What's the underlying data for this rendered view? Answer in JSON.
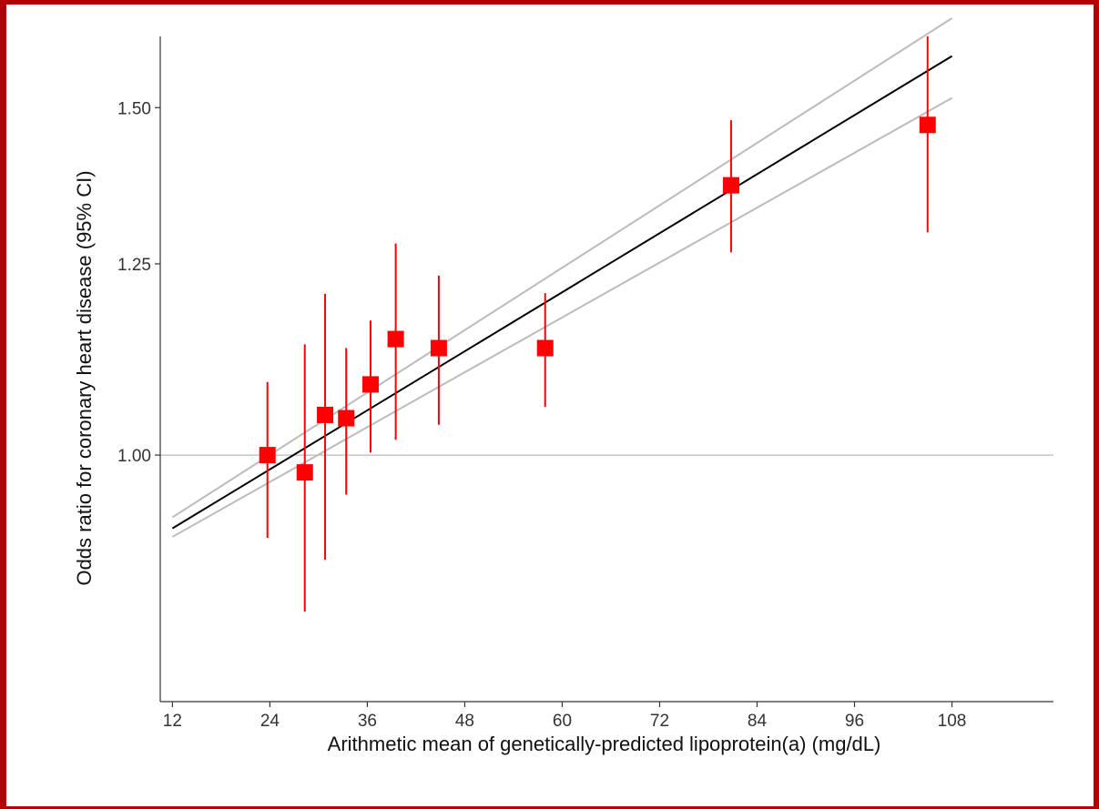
{
  "chart_data": {
    "type": "scatter",
    "title": "",
    "xlabel": "Arithmetic mean of genetically-predicted lipoprotein(a) (mg/dL)",
    "ylabel": "Odds ratio for coronary heart disease (95% CI)",
    "x_ticks": [
      "12",
      "24",
      "36",
      "48",
      "60",
      "72",
      "84",
      "96",
      "108"
    ],
    "y_ticks": [
      "1.00",
      "1.25",
      "1.50"
    ],
    "xlim": [
      10.5,
      120.5
    ],
    "ylim": [
      0.75,
      1.63
    ],
    "log_y": true,
    "reference_line_y": 1.0,
    "grid": false,
    "points": [
      {
        "x": 23.7,
        "or": 1.0,
        "lo": 0.908,
        "hi": 1.089
      },
      {
        "x": 28.3,
        "or": 0.98,
        "lo": 0.833,
        "hi": 1.138
      },
      {
        "x": 30.8,
        "or": 1.048,
        "lo": 0.885,
        "hi": 1.207
      },
      {
        "x": 33.4,
        "or": 1.044,
        "lo": 0.955,
        "hi": 1.133
      },
      {
        "x": 36.4,
        "or": 1.086,
        "lo": 1.003,
        "hi": 1.17
      },
      {
        "x": 39.5,
        "or": 1.145,
        "lo": 1.018,
        "hi": 1.28
      },
      {
        "x": 44.8,
        "or": 1.133,
        "lo": 1.036,
        "hi": 1.233
      },
      {
        "x": 57.9,
        "or": 1.133,
        "lo": 1.058,
        "hi": 1.208
      },
      {
        "x": 80.8,
        "or": 1.37,
        "lo": 1.267,
        "hi": 1.478
      },
      {
        "x": 105.0,
        "or": 1.47,
        "lo": 1.297,
        "hi": 1.63
      }
    ],
    "fit_line": {
      "x": [
        12,
        108
      ],
      "y": [
        0.918,
        1.593
      ]
    },
    "ci_upper": {
      "x": [
        12,
        108
      ],
      "y": [
        0.93,
        1.665
      ]
    },
    "ci_lower": {
      "x": [
        12,
        108
      ],
      "y": [
        0.909,
        1.517
      ]
    },
    "colors": {
      "points": "#ff0000",
      "error_bars": "#ff0000",
      "fit_line": "#000000",
      "ci_lines": "#bbbbbb",
      "reference_line": "#bbbbbb",
      "axis": "#333333",
      "frame_border": "#b30000"
    }
  }
}
